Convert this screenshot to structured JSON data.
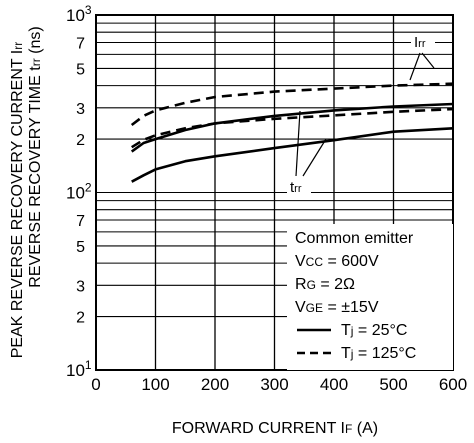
{
  "chart_data": {
    "type": "line",
    "xlabel": "FORWARD CURRENT",
    "xlabel_symbol": "I",
    "xlabel_symbol_sub": "F",
    "xlabel_unit": "(A)",
    "ylabel_line1": "PEAK REVERSE RECOVERY CURRENT",
    "ylabel_line1_symbol": "I",
    "ylabel_line1_symbol_sub": "rr",
    "ylabel_line2": "REVERSE RECOVERY TIME",
    "ylabel_line2_symbol": "t",
    "ylabel_line2_symbol_sub": "rr",
    "ylabel_line2_unit": "(ns)",
    "xlim": [
      0,
      600
    ],
    "ylim": [
      10,
      1000
    ],
    "y_scale": "log",
    "x_ticks": [
      "0",
      "100",
      "200",
      "300",
      "400",
      "500",
      "600"
    ],
    "x_tick_values": [
      0,
      100,
      200,
      300,
      400,
      500,
      600
    ],
    "y_major_ticks": [
      {
        "value": 10,
        "base": "10",
        "exp": "1"
      },
      {
        "value": 100,
        "base": "10",
        "exp": "2"
      },
      {
        "value": 1000,
        "base": "10",
        "exp": "3"
      }
    ],
    "y_minor_ticks": [
      {
        "value": 20,
        "label": "2"
      },
      {
        "value": 30,
        "label": "3"
      },
      {
        "value": 50,
        "label": "5"
      },
      {
        "value": 70,
        "label": "7"
      },
      {
        "value": 200,
        "label": "2"
      },
      {
        "value": 300,
        "label": "3"
      },
      {
        "value": 500,
        "label": "5"
      },
      {
        "value": 700,
        "label": "7"
      }
    ],
    "y_extra_gridlines": [
      40,
      60,
      80,
      90,
      400,
      600,
      800,
      900
    ],
    "grid": true,
    "series": [
      {
        "id": "irr-25",
        "group": "Irr",
        "condition": "Tj = 25°C",
        "style": "solid",
        "x": [
          60,
          80,
          100,
          150,
          200,
          300,
          400,
          500,
          600
        ],
        "y": [
          170,
          190,
          200,
          225,
          245,
          270,
          290,
          305,
          315
        ]
      },
      {
        "id": "irr-125",
        "group": "Irr",
        "condition": "Tj = 125°C",
        "style": "dashed",
        "x": [
          60,
          80,
          100,
          150,
          200,
          300,
          400,
          500,
          600
        ],
        "y": [
          240,
          270,
          290,
          320,
          345,
          370,
          385,
          400,
          410
        ]
      },
      {
        "id": "trr-25",
        "group": "trr",
        "condition": "Tj = 25°C",
        "style": "solid",
        "x": [
          60,
          80,
          100,
          150,
          200,
          300,
          400,
          500,
          600
        ],
        "y": [
          115,
          125,
          135,
          150,
          160,
          178,
          197,
          220,
          230
        ]
      },
      {
        "id": "trr-125",
        "group": "trr",
        "condition": "Tj = 125°C",
        "style": "dashed",
        "x": [
          60,
          80,
          100,
          150,
          200,
          300,
          400,
          500,
          600
        ],
        "y": [
          180,
          198,
          210,
          230,
          245,
          260,
          272,
          285,
          295
        ]
      }
    ],
    "curve_labels": [
      {
        "id": "irr-label",
        "symbol": "I",
        "sub": "rr"
      },
      {
        "id": "trr-label",
        "symbol": "t",
        "sub": "rr"
      }
    ],
    "legend": {
      "placement": "bottom-right",
      "heading": "Common emitter",
      "conditions": [
        {
          "symbol": "V",
          "sub": "CC",
          "value": "= 600V"
        },
        {
          "symbol": "R",
          "sub": "G",
          "value": "= 2Ω"
        },
        {
          "symbol": "V",
          "sub": "GE",
          "value": "= ±15V"
        }
      ],
      "entries": [
        {
          "style": "solid",
          "symbol": "T",
          "sub": "j",
          "value": "= 25°C"
        },
        {
          "style": "dashed",
          "symbol": "T",
          "sub": "j",
          "value": "= 125°C"
        }
      ]
    }
  }
}
